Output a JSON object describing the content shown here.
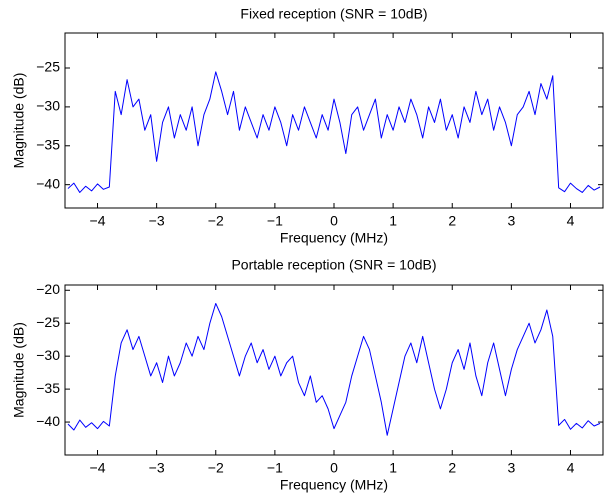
{
  "chart_data": [
    {
      "type": "line",
      "title": "Fixed reception (SNR = 10dB)",
      "x_label": "Frequency (MHz)",
      "y_label": "Magnitude (dB)",
      "xlim": [
        -4.55,
        4.55
      ],
      "ylim": [
        -43,
        -20.5
      ],
      "xticks": [
        {
          "value": -4,
          "label": "−4"
        },
        {
          "value": -3,
          "label": "−3"
        },
        {
          "value": -2,
          "label": "−2"
        },
        {
          "value": -1,
          "label": "−1"
        },
        0,
        1,
        2,
        3,
        4
      ],
      "yticks": [
        {
          "value": -40,
          "label": "−40"
        },
        {
          "value": -35,
          "label": "−35"
        },
        {
          "value": -30,
          "label": "−30"
        },
        {
          "value": -25,
          "label": "−25"
        }
      ],
      "x": [
        -4.5,
        -4.4,
        -4.3,
        -4.2,
        -4.1,
        -4.0,
        -3.9,
        -3.8,
        -3.7,
        -3.6,
        -3.5,
        -3.4,
        -3.3,
        -3.2,
        -3.1,
        -3.0,
        -2.9,
        -2.8,
        -2.7,
        -2.6,
        -2.5,
        -2.4,
        -2.3,
        -2.2,
        -2.1,
        -2.0,
        -1.9,
        -1.8,
        -1.7,
        -1.6,
        -1.5,
        -1.4,
        -1.3,
        -1.2,
        -1.1,
        -1.0,
        -0.9,
        -0.8,
        -0.7,
        -0.6,
        -0.5,
        -0.4,
        -0.3,
        -0.2,
        -0.1,
        0,
        0.1,
        0.2,
        0.3,
        0.4,
        0.5,
        0.6,
        0.7,
        0.8,
        0.9,
        1.0,
        1.1,
        1.2,
        1.3,
        1.4,
        1.5,
        1.6,
        1.7,
        1.8,
        1.9,
        2.0,
        2.1,
        2.2,
        2.3,
        2.4,
        2.5,
        2.6,
        2.7,
        2.8,
        2.9,
        3.0,
        3.1,
        3.2,
        3.3,
        3.4,
        3.5,
        3.6,
        3.7,
        3.8,
        3.9,
        4.0,
        4.1,
        4.2,
        4.3,
        4.4,
        4.5
      ],
      "color": "#0000ff",
      "values": [
        -40.5,
        -39.8,
        -41,
        -40.2,
        -40.8,
        -39.9,
        -40.6,
        -40.3,
        -28,
        -31,
        -26.5,
        -30,
        -29,
        -33,
        -31,
        -37,
        -32,
        -30,
        -34,
        -31,
        -33,
        -30,
        -35,
        -31,
        -29,
        -25.5,
        -28,
        -31,
        -28,
        -33,
        -30,
        -32,
        -34,
        -31,
        -33,
        -30,
        -32,
        -35,
        -31,
        -33,
        -30,
        -32,
        -34,
        -31,
        -33,
        -29,
        -32,
        -36,
        -31,
        -30,
        -33,
        -31,
        -29,
        -34,
        -31,
        -33,
        -30,
        -32,
        -29,
        -31,
        -34,
        -30,
        -32,
        -29,
        -33,
        -31,
        -34,
        -30,
        -32,
        -28,
        -31,
        -29,
        -33,
        -30,
        -32,
        -35,
        -31,
        -30,
        -28,
        -31,
        -27,
        -29,
        -26,
        -40.4,
        -40.9,
        -39.8,
        -40.5,
        -41,
        -40.1,
        -40.7,
        -40.3
      ]
    },
    {
      "type": "line",
      "title": "Portable reception (SNR = 10dB)",
      "x_label": "Frequency (MHz)",
      "y_label": "Magnitude (dB)",
      "xlim": [
        -4.55,
        4.55
      ],
      "ylim": [
        -45,
        -19.2
      ],
      "xticks": [
        {
          "value": -4,
          "label": "−4"
        },
        {
          "value": -3,
          "label": "−3"
        },
        {
          "value": -2,
          "label": "−2"
        },
        {
          "value": -1,
          "label": "−1"
        },
        0,
        1,
        2,
        3,
        4
      ],
      "yticks": [
        {
          "value": -40,
          "label": "−40"
        },
        {
          "value": -35,
          "label": "−35"
        },
        {
          "value": -30,
          "label": "−30"
        },
        {
          "value": -25,
          "label": "−25"
        },
        {
          "value": -20,
          "label": "−20"
        }
      ],
      "x": [
        -4.5,
        -4.4,
        -4.3,
        -4.2,
        -4.1,
        -4.0,
        -3.9,
        -3.8,
        -3.7,
        -3.6,
        -3.5,
        -3.4,
        -3.3,
        -3.2,
        -3.1,
        -3.0,
        -2.9,
        -2.8,
        -2.7,
        -2.6,
        -2.5,
        -2.4,
        -2.3,
        -2.2,
        -2.1,
        -2.0,
        -1.9,
        -1.8,
        -1.7,
        -1.6,
        -1.5,
        -1.4,
        -1.3,
        -1.2,
        -1.1,
        -1.0,
        -0.9,
        -0.8,
        -0.7,
        -0.6,
        -0.5,
        -0.4,
        -0.3,
        -0.2,
        -0.1,
        0,
        0.1,
        0.2,
        0.3,
        0.4,
        0.5,
        0.6,
        0.7,
        0.8,
        0.9,
        1.0,
        1.1,
        1.2,
        1.3,
        1.4,
        1.5,
        1.6,
        1.7,
        1.8,
        1.9,
        2.0,
        2.1,
        2.2,
        2.3,
        2.4,
        2.5,
        2.6,
        2.7,
        2.8,
        2.9,
        3.0,
        3.1,
        3.2,
        3.3,
        3.4,
        3.5,
        3.6,
        3.7,
        3.8,
        3.9,
        4.0,
        4.1,
        4.2,
        4.3,
        4.4,
        4.5
      ],
      "color": "#0000ff",
      "values": [
        -40.3,
        -41.2,
        -39.7,
        -40.8,
        -40.1,
        -41,
        -39.9,
        -40.6,
        -33,
        -28,
        -26,
        -29,
        -27,
        -30,
        -33,
        -31,
        -34,
        -30,
        -33,
        -31,
        -28,
        -30,
        -27,
        -29,
        -25,
        -22,
        -24,
        -27,
        -30,
        -33,
        -30,
        -28,
        -31,
        -29,
        -32,
        -30,
        -33,
        -31,
        -30,
        -34,
        -36,
        -33,
        -37,
        -36,
        -38,
        -41,
        -39,
        -37,
        -33,
        -30,
        -27,
        -29,
        -33,
        -37,
        -42,
        -38,
        -34,
        -30,
        -28,
        -31,
        -27,
        -31,
        -35,
        -38,
        -35,
        -31,
        -29,
        -32,
        -28,
        -33,
        -36,
        -31,
        -28,
        -32,
        -36,
        -32,
        -29,
        -27,
        -25,
        -28,
        -26,
        -23,
        -27,
        -40.5,
        -39.6,
        -41.1,
        -40.2,
        -40.9,
        -39.8,
        -40.6,
        -40.2
      ]
    }
  ]
}
